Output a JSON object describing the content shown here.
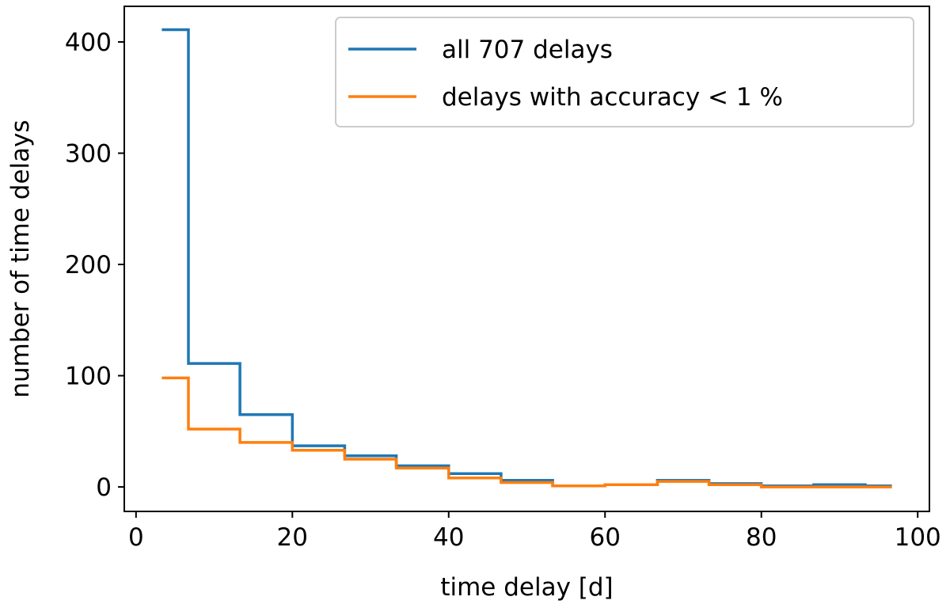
{
  "chart_data": {
    "type": "line",
    "xlabel": "time delay [d]",
    "ylabel": "number of time delays",
    "xlim": [
      -1.5,
      101.5
    ],
    "ylim": [
      -22,
      432
    ],
    "xticks": [
      0,
      20,
      40,
      60,
      80,
      100
    ],
    "yticks": [
      0,
      100,
      200,
      300,
      400
    ],
    "legend_position": "top-right",
    "bin_edges": [
      3.3,
      6.7,
      13.3,
      20.0,
      26.7,
      33.3,
      40.0,
      46.7,
      53.3,
      60.0,
      66.7,
      73.3,
      80.0,
      86.7,
      93.3,
      96.7
    ],
    "series": [
      {
        "name": "all 707 delays",
        "color": "#1f77b4",
        "values": [
          411,
          111,
          65,
          37,
          28,
          19,
          12,
          6,
          1,
          2,
          6,
          3,
          1,
          2,
          1
        ]
      },
      {
        "name": "delays with accuracy < 1 %",
        "color": "#ff7f0e",
        "values": [
          98,
          52,
          40,
          33,
          25,
          17,
          8,
          4,
          1,
          2,
          5,
          2,
          0,
          0,
          0
        ]
      }
    ]
  }
}
